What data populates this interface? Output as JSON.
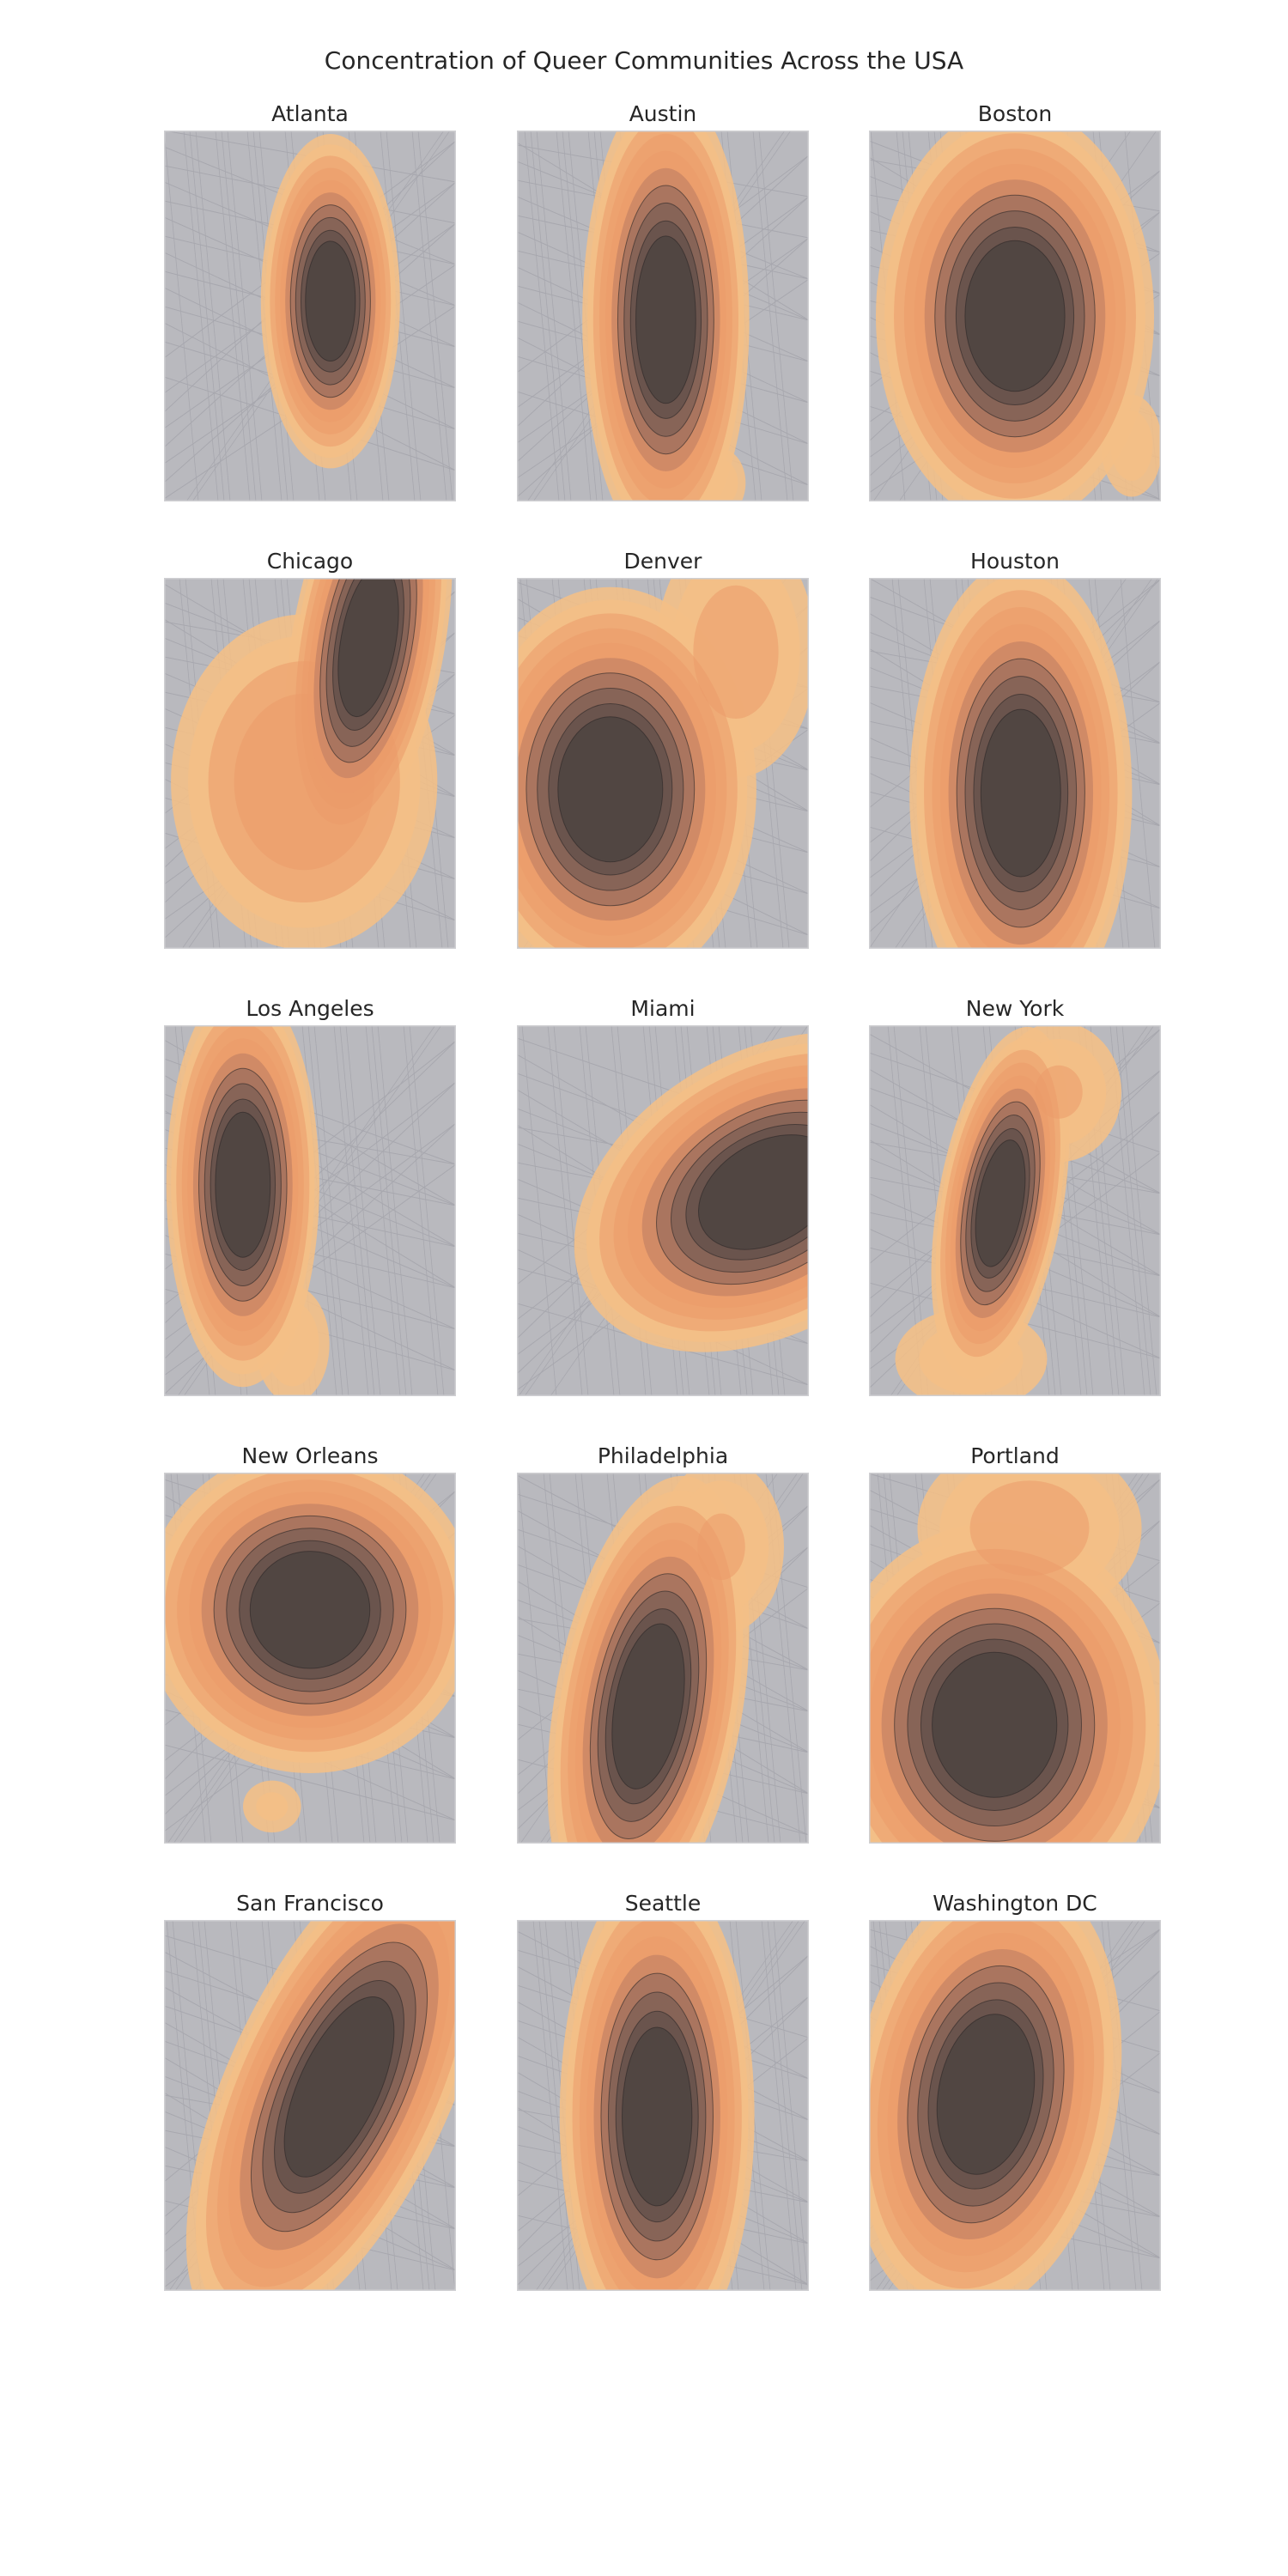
{
  "figure": {
    "title": "Concentration of Queer Communities Across the USA"
  },
  "colors": {
    "basemap": "#b9b9be",
    "basemap_detail": "#9a9aa2",
    "water": "#c4c4c9",
    "density_low": "#f4bf86",
    "density_mid": "#eb9a6a",
    "density_high": "#6a5651",
    "density_peak": "#3d3a3a"
  },
  "cities": [
    {
      "name": "Atlanta",
      "lobes": [
        [
          0.57,
          0.46,
          0.2,
          0.43,
          0,
          1.0
        ]
      ]
    },
    {
      "name": "Austin",
      "lobes": [
        [
          0.51,
          0.51,
          0.24,
          0.6,
          0,
          1.0
        ],
        [
          0.7,
          0.95,
          0.08,
          0.1,
          0,
          0.3
        ]
      ]
    },
    {
      "name": "Boston",
      "lobes": [
        [
          0.5,
          0.5,
          0.4,
          0.54,
          0,
          1.0
        ],
        [
          0.9,
          0.85,
          0.1,
          0.15,
          0,
          0.3
        ]
      ]
    },
    {
      "name": "Chicago",
      "lobes": [
        [
          0.7,
          0.17,
          0.22,
          0.55,
          10,
          1.0
        ],
        [
          0.48,
          0.55,
          0.4,
          0.45,
          0,
          0.55
        ]
      ]
    },
    {
      "name": "Denver",
      "lobes": [
        [
          0.32,
          0.57,
          0.42,
          0.52,
          0,
          1.0
        ],
        [
          0.75,
          0.2,
          0.25,
          0.35,
          0,
          0.4
        ]
      ]
    },
    {
      "name": "Houston",
      "lobes": [
        [
          0.52,
          0.58,
          0.32,
          0.6,
          0,
          1.0
        ]
      ]
    },
    {
      "name": "Los Angeles",
      "lobes": [
        [
          0.27,
          0.43,
          0.22,
          0.52,
          0,
          1.0
        ],
        [
          0.44,
          0.86,
          0.12,
          0.17,
          0,
          0.32
        ]
      ]
    },
    {
      "name": "Miami",
      "lobes": [
        [
          0.86,
          0.45,
          0.6,
          0.36,
          -30,
          1.0
        ]
      ]
    },
    {
      "name": "New York",
      "lobes": [
        [
          0.45,
          0.48,
          0.18,
          0.46,
          10,
          1.0
        ],
        [
          0.65,
          0.18,
          0.2,
          0.2,
          0,
          0.35
        ],
        [
          0.35,
          0.9,
          0.25,
          0.15,
          0,
          0.3
        ]
      ]
    },
    {
      "name": "New Orleans",
      "lobes": [
        [
          0.5,
          0.37,
          0.48,
          0.42,
          0,
          1.0
        ],
        [
          0.37,
          0.9,
          0.1,
          0.08,
          0,
          0.25
        ]
      ]
    },
    {
      "name": "Philadelphia",
      "lobes": [
        [
          0.45,
          0.63,
          0.27,
          0.6,
          10,
          1.0
        ],
        [
          0.7,
          0.2,
          0.2,
          0.25,
          0,
          0.35
        ]
      ]
    },
    {
      "name": "Portland",
      "lobes": [
        [
          0.43,
          0.68,
          0.5,
          0.52,
          0,
          1.0
        ],
        [
          0.55,
          0.15,
          0.35,
          0.25,
          0,
          0.4
        ]
      ]
    },
    {
      "name": "San Francisco",
      "lobes": [
        [
          0.6,
          0.45,
          0.32,
          0.7,
          25,
          1.0
        ]
      ]
    },
    {
      "name": "Seattle",
      "lobes": [
        [
          0.48,
          0.53,
          0.28,
          0.64,
          0,
          1.0
        ],
        [
          0.4,
          0.92,
          0.12,
          0.1,
          0,
          0.3
        ]
      ]
    },
    {
      "name": "Washington DC",
      "lobes": [
        [
          0.4,
          0.47,
          0.38,
          0.58,
          10,
          1.0
        ]
      ]
    }
  ]
}
